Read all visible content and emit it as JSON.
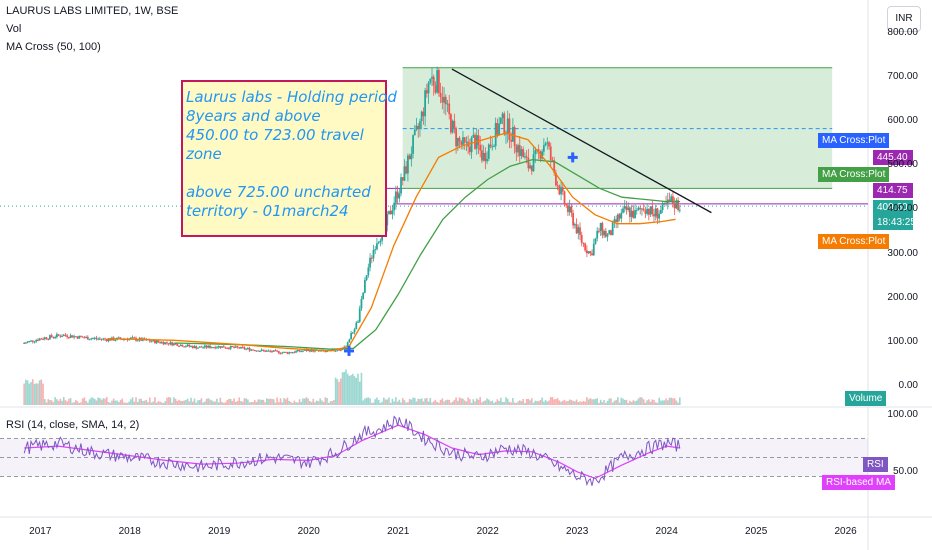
{
  "header": {
    "symbol_title": "LAURUS LABS LIMITED, 1W, BSE",
    "vol_label": "Vol",
    "ma_label": "MA Cross (50, 100)",
    "rsi_label": "RSI (14, close, SMA, 14, 2)",
    "currency": "INR"
  },
  "note": {
    "lines": [
      "Laurus labs - Holding period",
      "8years and  above",
      "450.00 to  723.00 travel",
      "zone",
      "",
      "above 725.00 uncharted",
      "territory - 01march24"
    ]
  },
  "price_tags": {
    "ma_cross_plot_1": "MA Cross:Plot",
    "ma_cross_plot_2": "MA Cross:Plot",
    "ma_cross_plot_3": "MA Cross:Plot",
    "tag_445": "445.40",
    "tag_414": "414.75",
    "last_price": "409.60",
    "countdown": "18:43:25",
    "volume_label": "Volume",
    "rsi_tag": "RSI",
    "rsi_ma_tag": "RSI-based MA"
  },
  "colors": {
    "candle_up": "#26a69a",
    "candle_down": "#ef5350",
    "ma50": "#f57c00",
    "ma100": "#43a047",
    "rsi": "#7e57c2",
    "rsi_ma": "#e040fb",
    "zone_fill": "#c8e6c9",
    "tag_blue": "#2962ff",
    "tag_purple": "#9c27b0",
    "tag_green": "#43a047",
    "tag_orange": "#f57c00"
  },
  "chart_data": {
    "type": "candlestick",
    "x_unit": "year",
    "xlabel_ticks": [
      "2017",
      "2018",
      "2019",
      "2020",
      "2021",
      "2022",
      "2023",
      "2024",
      "2025",
      "2026"
    ],
    "price_axis_ticks": [
      "800.00",
      "700.00",
      "600.00",
      "500.00",
      "400.00",
      "300.00",
      "200.00",
      "100.00",
      "0.00"
    ],
    "price_tick_values": [
      800,
      700,
      600,
      500,
      400,
      300,
      200,
      100,
      0
    ],
    "price_ylim": [
      -20,
      840
    ],
    "rsi_axis_ticks": [
      "100.00",
      "50.00"
    ],
    "rsi_tick_values": [
      100,
      50
    ],
    "rsi_ylim": [
      0,
      100
    ],
    "rsi_bands": [
      70,
      50,
      30
    ],
    "x_range": [
      2016.55,
      2026.25
    ],
    "close_series": {
      "x": [
        2016.82,
        2017.0,
        2017.25,
        2017.5,
        2017.75,
        2018.0,
        2018.25,
        2018.5,
        2018.75,
        2019.0,
        2019.25,
        2019.5,
        2019.75,
        2020.0,
        2020.2,
        2020.4,
        2020.55,
        2020.65,
        2020.75,
        2020.85,
        2020.95,
        2021.05,
        2021.15,
        2021.25,
        2021.35,
        2021.45,
        2021.55,
        2021.65,
        2021.75,
        2021.85,
        2021.95,
        2022.05,
        2022.15,
        2022.25,
        2022.35,
        2022.45,
        2022.55,
        2022.65,
        2022.75,
        2022.85,
        2022.95,
        2023.05,
        2023.15,
        2023.25,
        2023.35,
        2023.45,
        2023.55,
        2023.65,
        2023.75,
        2023.85,
        2023.95,
        2024.05,
        2024.15
      ],
      "values": [
        100,
        110,
        118,
        112,
        108,
        110,
        104,
        98,
        90,
        92,
        88,
        82,
        78,
        84,
        80,
        88,
        150,
        260,
        330,
        360,
        420,
        470,
        540,
        600,
        700,
        690,
        620,
        560,
        540,
        560,
        520,
        560,
        600,
        580,
        540,
        500,
        520,
        560,
        480,
        420,
        380,
        330,
        300,
        360,
        340,
        380,
        400,
        390,
        410,
        390,
        400,
        420,
        409.6
      ]
    },
    "series": [
      {
        "name": "MA Cross:Plot",
        "x": [
          2017.75,
          2018.5,
          2019.25,
          2019.75,
          2020.25,
          2020.45,
          2020.7,
          2020.95,
          2021.2,
          2021.45,
          2021.7,
          2021.95,
          2022.2,
          2022.45,
          2022.7,
          2022.95,
          2023.2,
          2023.45,
          2023.7,
          2023.95,
          2024.1
        ],
        "values": [
          110,
          106,
          96,
          88,
          82,
          92,
          180,
          320,
          430,
          520,
          545,
          560,
          575,
          560,
          500,
          430,
          390,
          370,
          370,
          375,
          380
        ]
      },
      {
        "name": "MA Cross:Plot",
        "x": [
          2018.5,
          2019.25,
          2019.75,
          2020.25,
          2020.5,
          2020.75,
          2021.0,
          2021.25,
          2021.5,
          2021.75,
          2022.0,
          2022.25,
          2022.5,
          2022.75,
          2023.0,
          2023.25,
          2023.5,
          2023.75,
          2024.0,
          2024.15
        ],
        "values": [
          100,
          96,
          92,
          86,
          88,
          130,
          210,
          300,
          380,
          430,
          470,
          500,
          515,
          510,
          480,
          450,
          430,
          425,
          420,
          420
        ]
      },
      {
        "name": "RSI",
        "x": [
          2016.82,
          2017.2,
          2017.6,
          2018.0,
          2018.4,
          2018.8,
          2019.2,
          2019.6,
          2020.0,
          2020.3,
          2020.6,
          2020.8,
          2021.0,
          2021.3,
          2021.6,
          2021.9,
          2022.2,
          2022.5,
          2022.8,
          2023.0,
          2023.2,
          2023.5,
          2023.8,
          2024.0,
          2024.15
        ],
        "values": [
          60,
          65,
          55,
          50,
          45,
          40,
          45,
          50,
          45,
          55,
          75,
          80,
          90,
          70,
          55,
          50,
          60,
          55,
          40,
          30,
          25,
          50,
          60,
          65,
          62
        ]
      },
      {
        "name": "RSI-based MA",
        "x": [
          2016.82,
          2017.2,
          2017.6,
          2018.0,
          2018.4,
          2018.8,
          2019.2,
          2019.6,
          2020.0,
          2020.3,
          2020.6,
          2020.8,
          2021.0,
          2021.3,
          2021.6,
          2021.9,
          2022.2,
          2022.5,
          2022.8,
          2023.0,
          2023.2,
          2023.5,
          2023.8,
          2024.0,
          2024.15
        ],
        "values": [
          60,
          62,
          57,
          52,
          47,
          43,
          44,
          48,
          47,
          52,
          68,
          76,
          84,
          74,
          60,
          53,
          57,
          56,
          45,
          35,
          28,
          42,
          55,
          62,
          60
        ]
      }
    ],
    "levels": {
      "zone_top": 723,
      "zone_bottom": 450,
      "dashed_level": 585,
      "purple_level": 414.75,
      "upper_purple_level": 445.4
    },
    "trendline": {
      "from": [
        2021.6,
        720
      ],
      "to": [
        2024.5,
        395
      ]
    },
    "cross_markers": [
      {
        "x": 2020.45,
        "y": 82
      },
      {
        "x": 2022.95,
        "y": 520
      }
    ]
  }
}
